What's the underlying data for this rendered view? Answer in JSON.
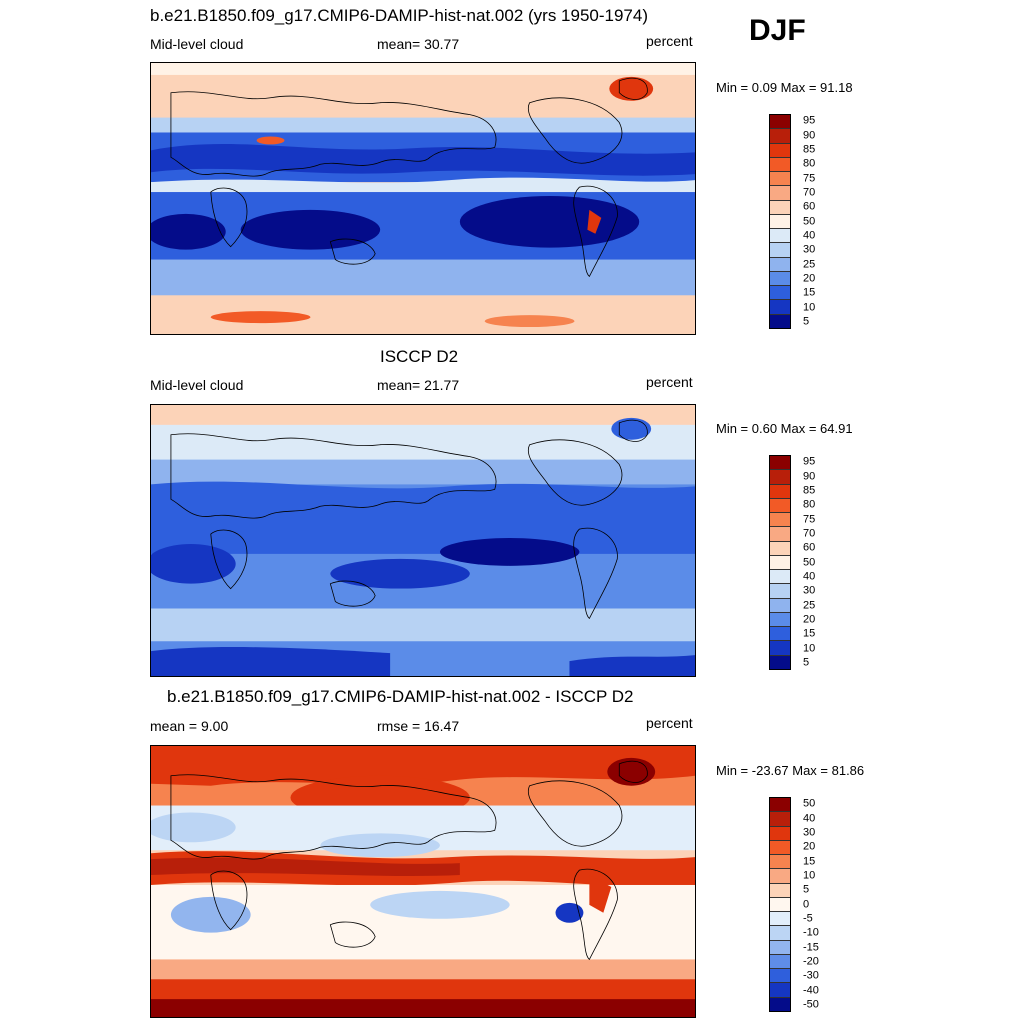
{
  "season": "DJF",
  "panels": [
    {
      "title": "b.e21.B1850.f09_g17.CMIP6-DAMIP-hist-nat.002 (yrs 1950-1974)",
      "left_label": "Mid-level cloud",
      "center_label": "mean=  30.77",
      "right_label": "percent",
      "minmax": "Min =   0.09 Max =  91.18",
      "colorbar_levels": [
        "95",
        "90",
        "85",
        "80",
        "75",
        "70",
        "60",
        "50",
        "40",
        "30",
        "25",
        "20",
        "15",
        "10",
        "5"
      ],
      "palette": "cloud"
    },
    {
      "title": "ISCCP D2",
      "left_label": "Mid-level cloud",
      "center_label": "mean=  21.77",
      "right_label": "percent",
      "minmax": "Min =   0.60 Max =  64.91",
      "colorbar_levels": [
        "95",
        "90",
        "85",
        "80",
        "75",
        "70",
        "60",
        "50",
        "40",
        "30",
        "25",
        "20",
        "15",
        "10",
        "5"
      ],
      "palette": "cloud"
    },
    {
      "title": "b.e21.B1850.f09_g17.CMIP6-DAMIP-hist-nat.002 - ISCCP D2",
      "left_label": "mean =   9.00",
      "center_label": "rmse =  16.47",
      "right_label": "percent",
      "minmax": "Min = -23.67 Max =  81.86",
      "colorbar_levels": [
        "50",
        "40",
        "30",
        "20",
        "15",
        "10",
        "5",
        "0",
        "-5",
        "-10",
        "-15",
        "-20",
        "-30",
        "-40",
        "-50"
      ],
      "palette": "diff"
    }
  ],
  "colors": {
    "cloud_swatches": [
      "#8b0000",
      "#b81f0a",
      "#e0360d",
      "#f25a26",
      "#f6834f",
      "#f9a983",
      "#fcd3b8",
      "#fff2e6",
      "#dceaf7",
      "#b7d2f3",
      "#8fb3ee",
      "#5b8ce8",
      "#2e5fdd",
      "#1536c2",
      "#040c8a"
    ],
    "diff_swatches": [
      "#8b0000",
      "#b81f0a",
      "#e0360d",
      "#f25a26",
      "#f6834f",
      "#f9a983",
      "#fcd3b8",
      "#fff7ef",
      "#e2eefa",
      "#bcd5f4",
      "#92b5ee",
      "#5f8de7",
      "#2f5fdc",
      "#1536c2",
      "#040c8a"
    ]
  }
}
